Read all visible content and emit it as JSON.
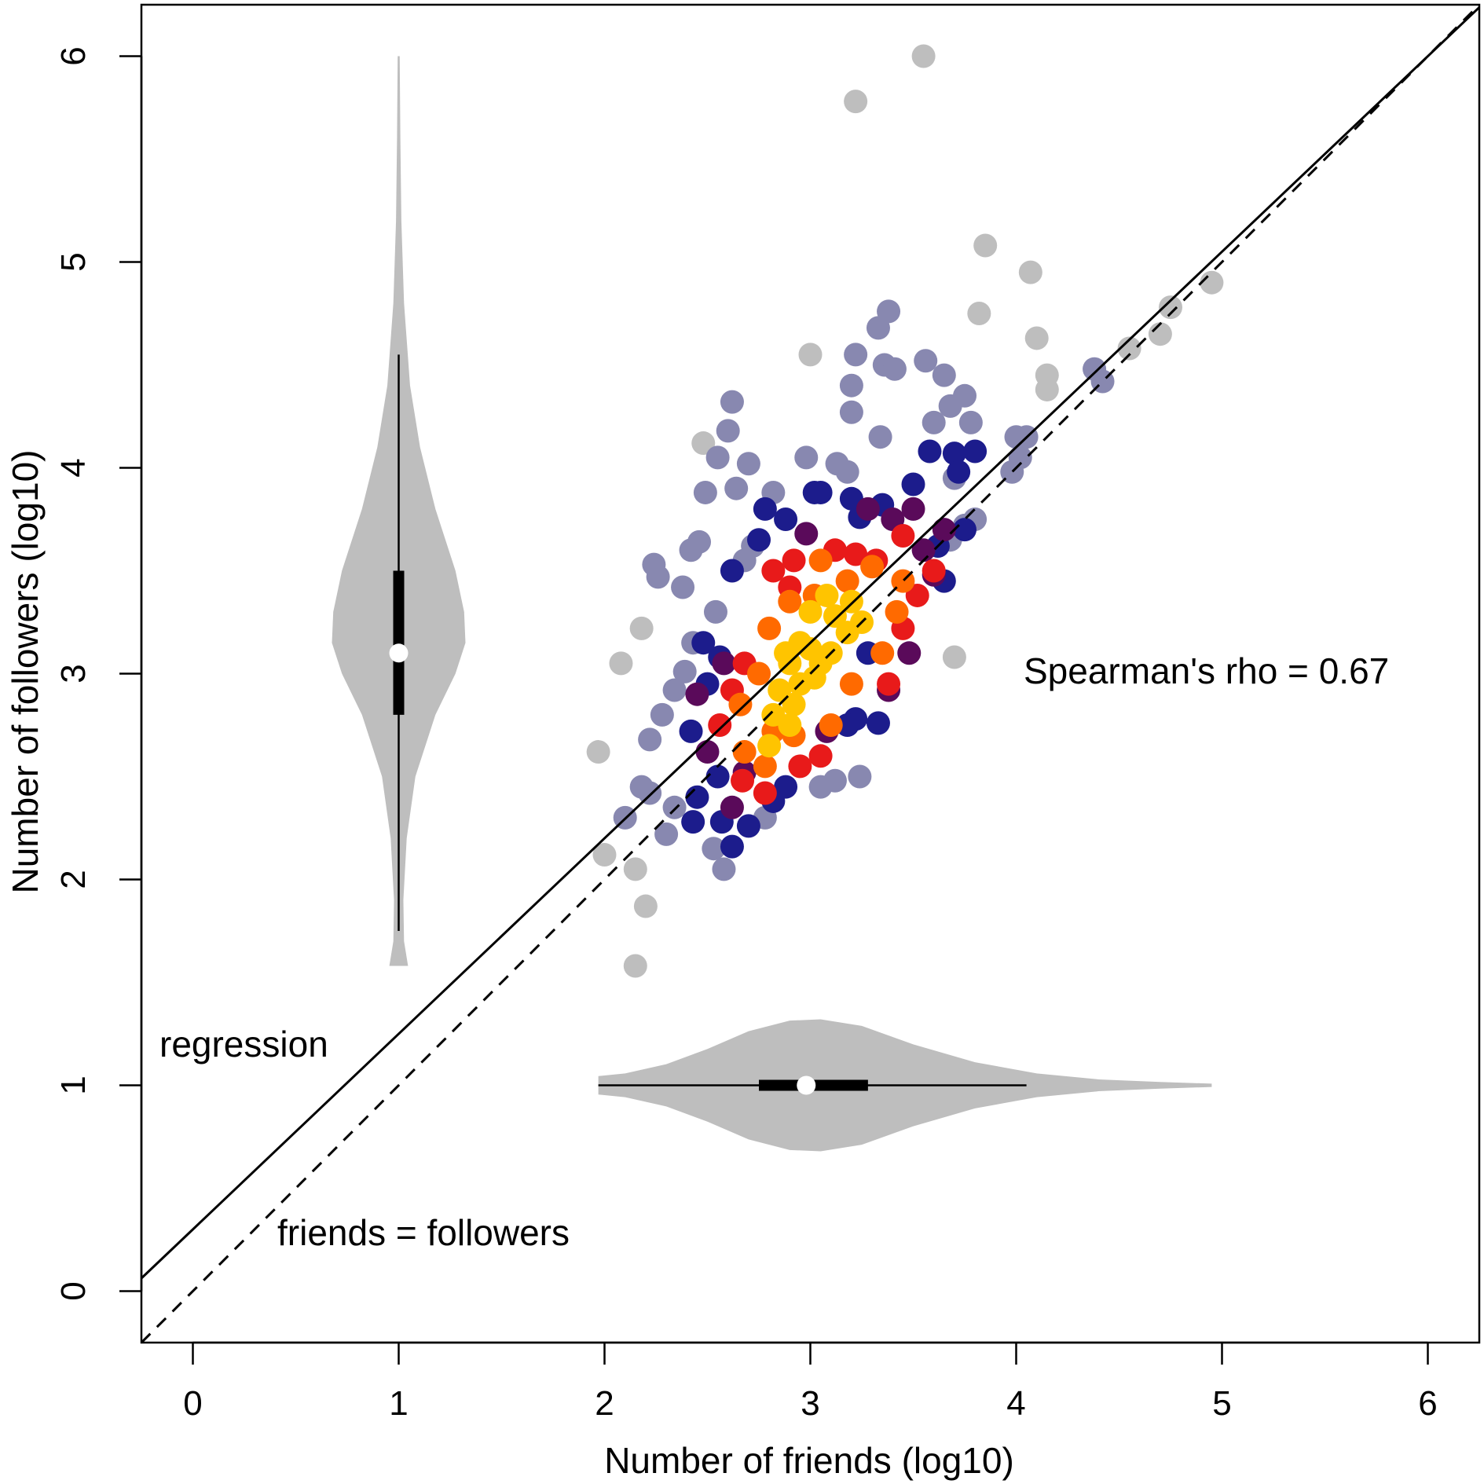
{
  "chart_data": {
    "type": "scatter",
    "title": "",
    "xlabel": "Number of friends (log10)",
    "ylabel": "Number of followers (log10)",
    "xlim": [
      -0.25,
      6.25
    ],
    "ylim": [
      -0.25,
      6.25
    ],
    "x_ticks": [
      "0",
      "1",
      "2",
      "3",
      "4",
      "5",
      "6"
    ],
    "y_ticks": [
      "0",
      "1",
      "2",
      "3",
      "4",
      "5",
      "6"
    ],
    "grid": false,
    "colors": {
      "outlier": "#bebebe",
      "low_density": "#8888b0",
      "blue": "#1c1c8c",
      "purple": "#5a0a5a",
      "red": "#e81a1a",
      "orange": "#ff6a00",
      "gold": "#ffc400"
    },
    "annotations": {
      "spearman": "Spearman's rho = 0.67",
      "regression": "regression",
      "identity": "friends = followers"
    },
    "regression_line": {
      "intercept": 0.3,
      "slope": 0.95
    },
    "identity_line": {
      "intercept": 0,
      "slope": 1
    },
    "violin_followers": {
      "x_center": 1,
      "min": 1.58,
      "max": 6.0,
      "whisker_low": 1.75,
      "whisker_high": 4.55,
      "q1": 2.8,
      "median": 3.1,
      "q3": 3.5
    },
    "violin_friends": {
      "y_center": 1,
      "min": 1.97,
      "max": 4.95,
      "whisker_low": 1.97,
      "whisker_high": 4.05,
      "q1": 2.75,
      "median": 2.98,
      "q3": 3.28
    },
    "points": {
      "outlier": [
        [
          3.55,
          6.0
        ],
        [
          3.22,
          5.78
        ],
        [
          3.85,
          5.08
        ],
        [
          4.07,
          4.95
        ],
        [
          4.95,
          4.9
        ],
        [
          3.82,
          4.75
        ],
        [
          4.1,
          4.63
        ],
        [
          3.0,
          4.55
        ],
        [
          4.15,
          4.45
        ],
        [
          4.15,
          4.38
        ],
        [
          3.7,
          3.08
        ],
        [
          2.48,
          4.12
        ],
        [
          2.18,
          3.22
        ],
        [
          2.08,
          3.05
        ],
        [
          1.97,
          2.62
        ],
        [
          2.0,
          2.12
        ],
        [
          2.2,
          1.87
        ],
        [
          2.15,
          1.58
        ],
        [
          2.15,
          2.05
        ],
        [
          4.75,
          4.78
        ],
        [
          4.7,
          4.65
        ],
        [
          4.55,
          4.58
        ]
      ],
      "low_density": [
        [
          3.22,
          4.55
        ],
        [
          3.33,
          4.68
        ],
        [
          3.38,
          4.76
        ],
        [
          3.36,
          4.5
        ],
        [
          3.41,
          4.48
        ],
        [
          3.56,
          4.52
        ],
        [
          3.65,
          4.45
        ],
        [
          3.75,
          4.35
        ],
        [
          3.68,
          4.3
        ],
        [
          3.6,
          4.22
        ],
        [
          3.78,
          4.22
        ],
        [
          3.2,
          4.4
        ],
        [
          3.2,
          4.27
        ],
        [
          3.34,
          4.15
        ],
        [
          2.62,
          4.32
        ],
        [
          2.6,
          4.18
        ],
        [
          2.55,
          4.05
        ],
        [
          2.7,
          4.02
        ],
        [
          2.98,
          4.05
        ],
        [
          3.13,
          4.02
        ],
        [
          3.18,
          3.98
        ],
        [
          2.49,
          3.88
        ],
        [
          2.64,
          3.9
        ],
        [
          2.82,
          3.88
        ],
        [
          2.42,
          3.6
        ],
        [
          2.46,
          3.64
        ],
        [
          2.24,
          3.53
        ],
        [
          2.26,
          3.47
        ],
        [
          2.38,
          3.42
        ],
        [
          2.54,
          3.3
        ],
        [
          2.39,
          3.01
        ],
        [
          2.34,
          2.92
        ],
        [
          2.28,
          2.8
        ],
        [
          2.22,
          2.68
        ],
        [
          2.43,
          3.15
        ],
        [
          2.18,
          2.45
        ],
        [
          2.22,
          2.42
        ],
        [
          2.1,
          2.3
        ],
        [
          2.34,
          2.35
        ],
        [
          2.3,
          2.22
        ],
        [
          2.53,
          2.15
        ],
        [
          2.58,
          2.05
        ],
        [
          2.78,
          2.3
        ],
        [
          3.12,
          2.48
        ],
        [
          3.24,
          2.5
        ],
        [
          3.05,
          2.45
        ],
        [
          4.0,
          4.15
        ],
        [
          4.05,
          4.15
        ],
        [
          4.02,
          4.05
        ],
        [
          3.98,
          3.98
        ],
        [
          3.7,
          3.95
        ],
        [
          3.8,
          3.75
        ],
        [
          3.68,
          3.65
        ],
        [
          3.75,
          3.72
        ],
        [
          4.38,
          4.48
        ],
        [
          4.42,
          4.42
        ],
        [
          2.72,
          3.62
        ],
        [
          2.68,
          3.55
        ]
      ],
      "blue": [
        [
          3.58,
          4.08
        ],
        [
          3.7,
          4.07
        ],
        [
          3.8,
          4.08
        ],
        [
          3.72,
          3.98
        ],
        [
          3.5,
          3.92
        ],
        [
          3.35,
          3.82
        ],
        [
          3.24,
          3.76
        ],
        [
          3.2,
          3.85
        ],
        [
          3.05,
          3.88
        ],
        [
          2.78,
          3.8
        ],
        [
          2.88,
          3.75
        ],
        [
          2.75,
          3.65
        ],
        [
          2.62,
          3.5
        ],
        [
          2.48,
          3.15
        ],
        [
          2.56,
          3.08
        ],
        [
          2.5,
          2.95
        ],
        [
          2.42,
          2.72
        ],
        [
          2.55,
          2.5
        ],
        [
          2.45,
          2.4
        ],
        [
          2.43,
          2.28
        ],
        [
          2.57,
          2.28
        ],
        [
          2.62,
          2.16
        ],
        [
          2.7,
          2.26
        ],
        [
          2.82,
          2.38
        ],
        [
          2.88,
          2.45
        ],
        [
          3.22,
          2.78
        ],
        [
          3.33,
          2.76
        ],
        [
          3.18,
          2.75
        ],
        [
          3.65,
          3.45
        ],
        [
          3.62,
          3.62
        ],
        [
          3.75,
          3.7
        ],
        [
          3.28,
          3.1
        ],
        [
          3.02,
          3.88
        ]
      ],
      "purple": [
        [
          3.5,
          3.8
        ],
        [
          3.4,
          3.75
        ],
        [
          3.65,
          3.7
        ],
        [
          3.28,
          3.8
        ],
        [
          2.98,
          3.68
        ],
        [
          2.58,
          3.05
        ],
        [
          2.45,
          2.9
        ],
        [
          2.5,
          2.62
        ],
        [
          2.62,
          2.35
        ],
        [
          2.68,
          2.52
        ],
        [
          3.08,
          2.72
        ],
        [
          3.38,
          2.92
        ],
        [
          3.48,
          3.1
        ],
        [
          3.55,
          3.6
        ],
        [
          3.6,
          3.48
        ]
      ],
      "red": [
        [
          3.45,
          3.67
        ],
        [
          3.32,
          3.55
        ],
        [
          3.22,
          3.58
        ],
        [
          3.12,
          3.6
        ],
        [
          2.92,
          3.55
        ],
        [
          2.82,
          3.5
        ],
        [
          2.9,
          3.42
        ],
        [
          2.68,
          3.05
        ],
        [
          2.62,
          2.92
        ],
        [
          2.56,
          2.75
        ],
        [
          2.67,
          2.48
        ],
        [
          2.78,
          2.42
        ],
        [
          2.95,
          2.55
        ],
        [
          3.05,
          2.6
        ],
        [
          3.38,
          2.95
        ],
        [
          3.45,
          3.22
        ],
        [
          3.52,
          3.38
        ],
        [
          3.6,
          3.5
        ]
      ],
      "orange": [
        [
          3.3,
          3.52
        ],
        [
          3.18,
          3.45
        ],
        [
          3.05,
          3.55
        ],
        [
          2.9,
          3.35
        ],
        [
          2.8,
          3.22
        ],
        [
          2.75,
          3.0
        ],
        [
          2.66,
          2.85
        ],
        [
          2.68,
          2.62
        ],
        [
          2.78,
          2.55
        ],
        [
          2.92,
          2.7
        ],
        [
          3.1,
          2.75
        ],
        [
          3.2,
          2.95
        ],
        [
          3.35,
          3.1
        ],
        [
          3.42,
          3.3
        ],
        [
          3.45,
          3.45
        ],
        [
          3.02,
          3.38
        ],
        [
          2.82,
          2.72
        ]
      ],
      "gold": [
        [
          3.2,
          3.35
        ],
        [
          3.08,
          3.38
        ],
        [
          3.0,
          3.3
        ],
        [
          2.95,
          3.15
        ],
        [
          2.9,
          3.05
        ],
        [
          2.85,
          2.92
        ],
        [
          2.82,
          2.8
        ],
        [
          2.92,
          2.85
        ],
        [
          3.02,
          2.98
        ],
        [
          3.1,
          3.1
        ],
        [
          3.18,
          3.2
        ],
        [
          3.25,
          3.25
        ],
        [
          3.0,
          3.12
        ],
        [
          2.95,
          2.95
        ],
        [
          3.12,
          3.28
        ],
        [
          2.88,
          3.1
        ],
        [
          3.05,
          3.05
        ],
        [
          2.8,
          2.65
        ],
        [
          2.9,
          2.75
        ]
      ]
    }
  }
}
